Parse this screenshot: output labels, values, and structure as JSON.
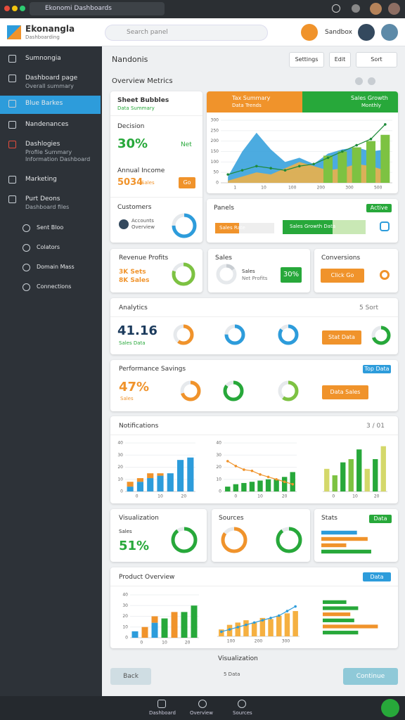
{
  "browser": {
    "tab": "Ekonomi Dashboards"
  },
  "header": {
    "title": "Ekonangla",
    "subtitle": "Dashboarding",
    "search": "Search panel",
    "user": "Sandbox"
  },
  "sidebar": {
    "items": [
      {
        "label": "Sumnongia"
      },
      {
        "label": "Dashboard page",
        "sub": "Overall summary"
      },
      {
        "label": "Blue Barkes"
      },
      {
        "label": "Nandenances"
      },
      {
        "label": "Dashlogies",
        "sub": "Profile Summary Information Dashboard"
      },
      {
        "label": "Marketing"
      },
      {
        "label": "Purt Deons",
        "sub": "Dashboard files"
      },
      {
        "label": "Sent Bloo"
      },
      {
        "label": "Colators"
      },
      {
        "label": "Domain Mass"
      },
      {
        "label": "Connections"
      }
    ]
  },
  "main": {
    "title": "Nandonis",
    "buttons": [
      "Settings",
      "Edit",
      "Sort"
    ],
    "overview": "Overview Metrics"
  },
  "summary": {
    "title": "Sheet Bubbles",
    "subtitle": "Data Summary",
    "metric_label": "Decision",
    "metric": "30%",
    "metric_note": "Net",
    "income_label": "Annual Income",
    "income": "5034",
    "income_note": "Sales",
    "income_button": "Go",
    "customers": "Customers",
    "customers_note": "Accounts Overview"
  },
  "trend": {
    "left_title": "Tax Summary",
    "left_sub": "Data Trends",
    "right_title": "Sales Growth",
    "right_sub": "Monthly"
  },
  "panels": {
    "title": "Panels",
    "badge": "Active",
    "bar_labels": [
      "Sales Rate",
      "Sales Growth Data"
    ]
  },
  "revenue": {
    "title": "Revenue Profits",
    "line1": "3K Sets",
    "line2": "8K Sales"
  },
  "sales": {
    "title": "Sales",
    "line1": "Sales",
    "line2": "Net Profits",
    "badge": "30%"
  },
  "conversions": {
    "title": "Conversions",
    "button": "Click Go"
  },
  "analytics": {
    "title": "Analytics",
    "sort": "5 Sort",
    "metric": "41.16",
    "note": "Sales Data",
    "button": "Stat Data"
  },
  "performance": {
    "title": "Performance Savings",
    "badge": "Top Data",
    "metric": "47%",
    "note": "Sales",
    "button": "Data Sales"
  },
  "notifications": {
    "title": "Notifications",
    "pager": "3 / 01"
  },
  "visualization": {
    "title": "Visualization",
    "label": "Sales",
    "metric": "51%"
  },
  "sources": {
    "title": "Sources"
  },
  "stats": {
    "title": "Stats",
    "badge": "Data"
  },
  "product": {
    "title": "Product Overview",
    "badge": "Data"
  },
  "footer": {
    "title": "Visualization",
    "sub": "5 Data",
    "back": "Back",
    "next": "Continue"
  },
  "bottom": {
    "items": [
      "Dashboard",
      "Overview",
      "Sources"
    ]
  },
  "progress": [
    {
      "value": 40,
      "color": "#f0932b"
    },
    {
      "value": 60,
      "color": "#27a83a"
    }
  ],
  "donuts": {
    "customers": {
      "value": 75,
      "color": "#2d9cdb"
    },
    "revenue": {
      "value": 80,
      "color": "#7dc242"
    },
    "sales": {
      "value": 15,
      "color": "#c8cdd2"
    },
    "analytics": [
      {
        "value": 60,
        "color": "#f0932b"
      },
      {
        "value": 75,
        "color": "#2d9cdb"
      },
      {
        "value": 85,
        "color": "#2d9cdb"
      },
      {
        "value": 70,
        "color": "#27a83a"
      }
    ],
    "performance": [
      {
        "value": 70,
        "color": "#f0932b"
      },
      {
        "value": 85,
        "color": "#27a83a"
      },
      {
        "value": 60,
        "color": "#7dc242"
      }
    ],
    "row": [
      {
        "value": 90,
        "color": "#27a83a"
      },
      {
        "value": 85,
        "color": "#f0932b"
      },
      {
        "value": 90,
        "color": "#27a83a"
      }
    ]
  },
  "charts": {
    "trend": {
      "ylim": [
        0,
        300
      ],
      "yticks": [
        0,
        50,
        100,
        150,
        200,
        250,
        300
      ],
      "xlabels": [
        "1",
        "10",
        "100",
        "200",
        "300",
        "500"
      ],
      "areas": [
        {
          "color": "#2d9cdb",
          "values": [
            30,
            150,
            240,
            160,
            100,
            120,
            90,
            140,
            160,
            170,
            150,
            160
          ]
        },
        {
          "color": "#f5b041",
          "values": [
            10,
            30,
            50,
            40,
            70,
            100,
            80,
            60,
            70,
            90,
            80,
            60
          ]
        }
      ],
      "bars": [
        null,
        null,
        null,
        null,
        null,
        null,
        null,
        130,
        150,
        170,
        200,
        230
      ],
      "color": "#7dc242",
      "line": [
        40,
        60,
        80,
        70,
        60,
        80,
        90,
        120,
        150,
        180,
        210,
        280
      ],
      "line_color": "#1e8a3a"
    },
    "notif1": {
      "ylim": [
        0,
        40
      ],
      "yticks": [
        0,
        10,
        20,
        30,
        40
      ],
      "xlabels": [
        "0",
        "10",
        "20"
      ],
      "bars": [
        4,
        8,
        11,
        13,
        15,
        26,
        28
      ],
      "color": "#2d9cdb",
      "stack": [
        4,
        3,
        4,
        2,
        null,
        null,
        null
      ],
      "stack_color": "#f0932b"
    },
    "notif2": {
      "ylim": [
        0,
        40
      ],
      "yticks": [
        0,
        10,
        20,
        30,
        40
      ],
      "xlabels": [
        "0",
        "10",
        "20"
      ],
      "bars": [
        4,
        6,
        7,
        8,
        9,
        10,
        10,
        12,
        16
      ],
      "color": "#27a83a",
      "line": [
        25,
        21,
        18,
        17,
        14,
        12,
        10,
        8,
        6
      ],
      "line_color": "#f0932b"
    },
    "notif3": {
      "ylim": [
        0,
        30
      ],
      "xlabels": [
        "0",
        "10",
        "20"
      ],
      "bars": [
        14,
        10,
        18,
        20,
        26,
        14,
        20,
        28
      ],
      "colors": [
        "#d4d86a",
        "#7dc242",
        "#27a83a",
        "#7dc242",
        "#27a83a",
        "#d4d86a",
        "#27a83a",
        "#d4d86a"
      ]
    },
    "prod1": {
      "ylim": [
        0,
        40
      ],
      "yticks": [
        0,
        10,
        20,
        30,
        40
      ],
      "xlabels": [
        "0",
        "10",
        "20"
      ],
      "bars": [
        6,
        10,
        14,
        18,
        20,
        24,
        30
      ],
      "colors": [
        "#2d9cdb",
        "#f0932b",
        "#2d9cdb",
        "#27a83a",
        "#f0932b",
        "#27a83a",
        "#27a83a"
      ],
      "stack": [
        null,
        null,
        6,
        null,
        4,
        null,
        null
      ],
      "stack_color": "#f0932b"
    },
    "prod2": {
      "ylim": [
        0,
        30
      ],
      "xlabels": [
        "100",
        "200",
        "300"
      ],
      "bars": [
        6,
        10,
        12,
        14,
        12,
        16,
        15,
        18,
        20,
        22
      ],
      "color": "#f5b041",
      "line": [
        4,
        6,
        8,
        10,
        12,
        14,
        16,
        18,
        22,
        26
      ],
      "line_color": "#2d9cdb"
    },
    "prod3": {
      "xlim": [
        0,
        30
      ],
      "hbars": [
        12,
        18,
        14,
        16,
        28,
        18
      ],
      "colors": [
        "#27a83a",
        "#27a83a",
        "#f0932b",
        "#27a83a",
        "#f0932b",
        "#27a83a"
      ]
    },
    "stats": {
      "xlim": [
        0,
        30
      ],
      "hbars": [
        20,
        26,
        14,
        28
      ],
      "colors": [
        "#2d9cdb",
        "#f0932b",
        "#f0932b",
        "#27a83a"
      ]
    }
  }
}
